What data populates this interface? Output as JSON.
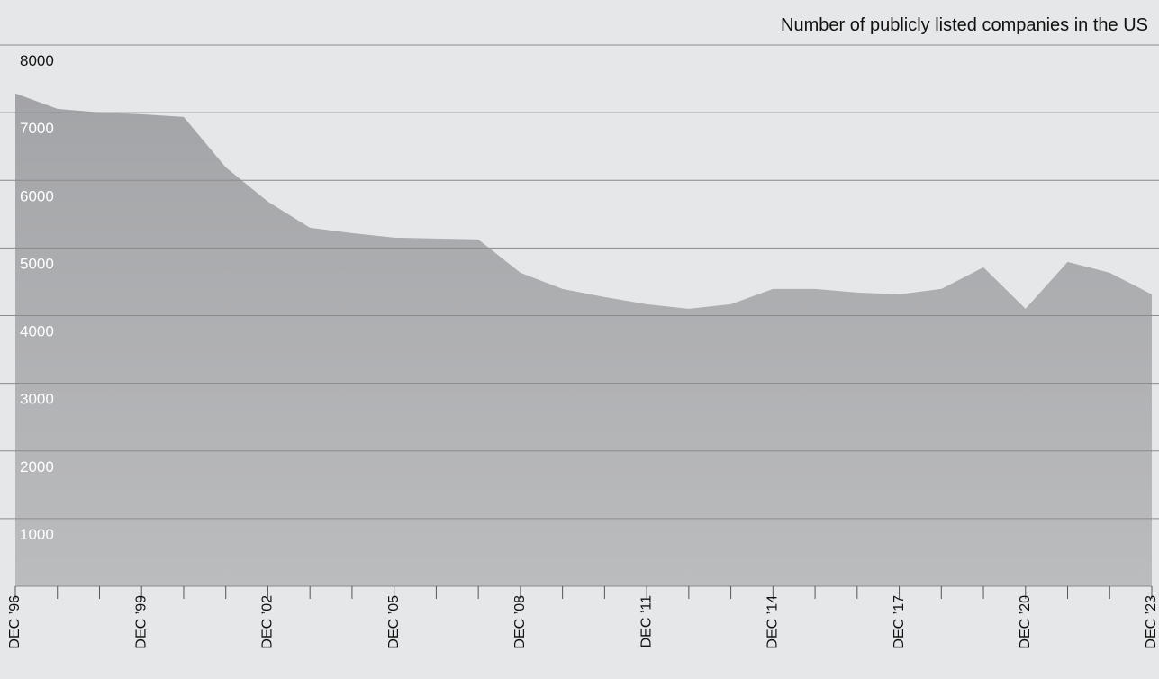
{
  "chart_data": {
    "type": "area",
    "subtitle": "Number of publicly listed companies in the US",
    "categories": [
      "DEC ’96",
      null,
      null,
      "DEC ’99",
      null,
      null,
      "DEC ’02",
      null,
      null,
      "DEC ’05",
      null,
      null,
      "DEC ’08",
      null,
      null,
      "DEC ’11",
      null,
      null,
      "DEC ’14",
      null,
      null,
      "DEC ’17",
      null,
      null,
      "DEC ’20",
      null,
      null,
      "DEC ’23"
    ],
    "values": [
      7284,
      7057,
      7004,
      6977,
      6937,
      6192,
      5686,
      5300,
      5220,
      5153,
      5140,
      5126,
      4634,
      4394,
      4274,
      4168,
      4101,
      4168,
      4394,
      4394,
      4341,
      4314,
      4394,
      4714,
      4101,
      4794,
      4634,
      4314
    ],
    "color": "#a3a4a7",
    "ylim": [
      0,
      8000
    ],
    "yticks": [
      1000,
      2000,
      3000,
      4000,
      5000,
      6000,
      7000,
      8000
    ],
    "grid": true
  }
}
